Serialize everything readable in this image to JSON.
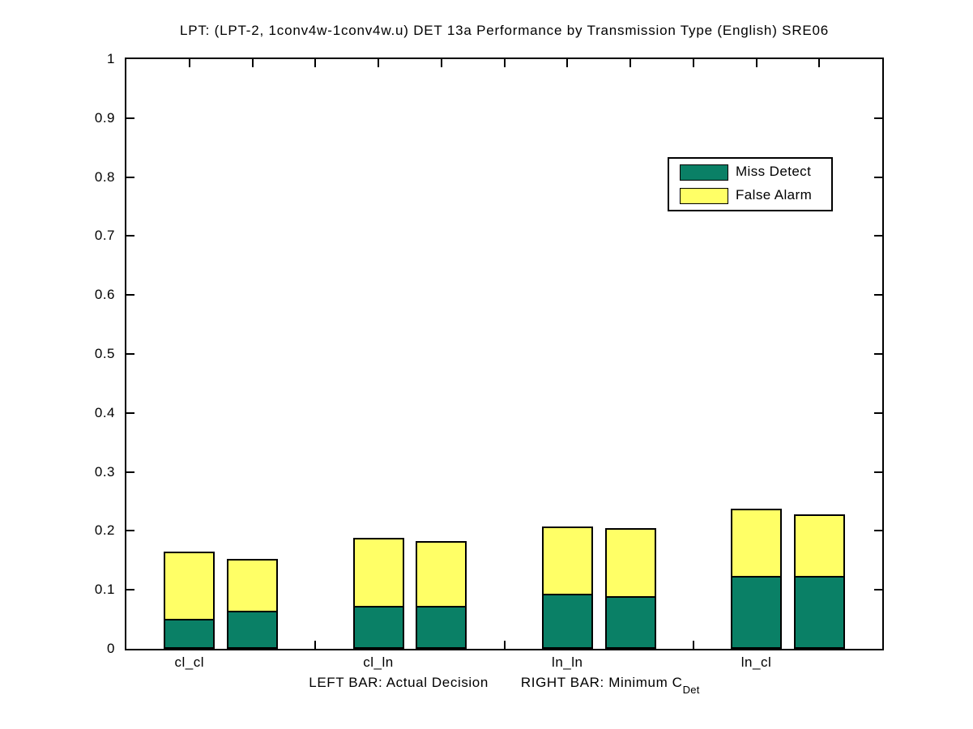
{
  "chart_data": {
    "type": "bar",
    "subtype": "grouped-stacked-pairs",
    "title": "LPT: (LPT-2, 1conv4w-1conv4w.u) DET 13a Performance by Transmission Type (English) SRE06",
    "ylim": [
      0,
      1
    ],
    "ytick_values": [
      0,
      0.1,
      0.2,
      0.3,
      0.4,
      0.5,
      0.6,
      0.7,
      0.8,
      0.9,
      1
    ],
    "ytick_labels": [
      "0",
      "0.1",
      "0.2",
      "0.3",
      "0.4",
      "0.5",
      "0.6",
      "0.7",
      "0.8",
      "0.9",
      "1"
    ],
    "categories": [
      "cl_cl",
      "cl_ln",
      "ln_ln",
      "ln_cl"
    ],
    "groups": [
      {
        "category": "cl_cl",
        "left_bar": {
          "miss_detect": 0.051,
          "false_alarm": 0.114,
          "total": 0.165
        },
        "right_bar": {
          "miss_detect": 0.064,
          "false_alarm": 0.089,
          "total": 0.153
        }
      },
      {
        "category": "cl_ln",
        "left_bar": {
          "miss_detect": 0.073,
          "false_alarm": 0.115,
          "total": 0.188
        },
        "right_bar": {
          "miss_detect": 0.073,
          "false_alarm": 0.11,
          "total": 0.183
        }
      },
      {
        "category": "ln_ln",
        "left_bar": {
          "miss_detect": 0.093,
          "false_alarm": 0.114,
          "total": 0.207
        },
        "right_bar": {
          "miss_detect": 0.089,
          "false_alarm": 0.116,
          "total": 0.205
        }
      },
      {
        "category": "ln_cl",
        "left_bar": {
          "miss_detect": 0.124,
          "false_alarm": 0.113,
          "total": 0.237
        },
        "right_bar": {
          "miss_detect": 0.124,
          "false_alarm": 0.104,
          "total": 0.228
        }
      }
    ],
    "legend": {
      "position": "upper-right",
      "items": [
        {
          "label": "Miss Detect",
          "color": "#0a8066"
        },
        {
          "label": "False Alarm",
          "color": "#ffff66"
        }
      ]
    },
    "xlabel": {
      "left_part": "LEFT BAR: Actual Decision",
      "right_part": "RIGHT BAR: Minimum C",
      "subscript": "Det"
    },
    "colors": {
      "miss_detect": "#0a8066",
      "false_alarm": "#ffff66",
      "axis": "#000000",
      "background": "#ffffff"
    },
    "grid": false,
    "legend_box": true
  }
}
